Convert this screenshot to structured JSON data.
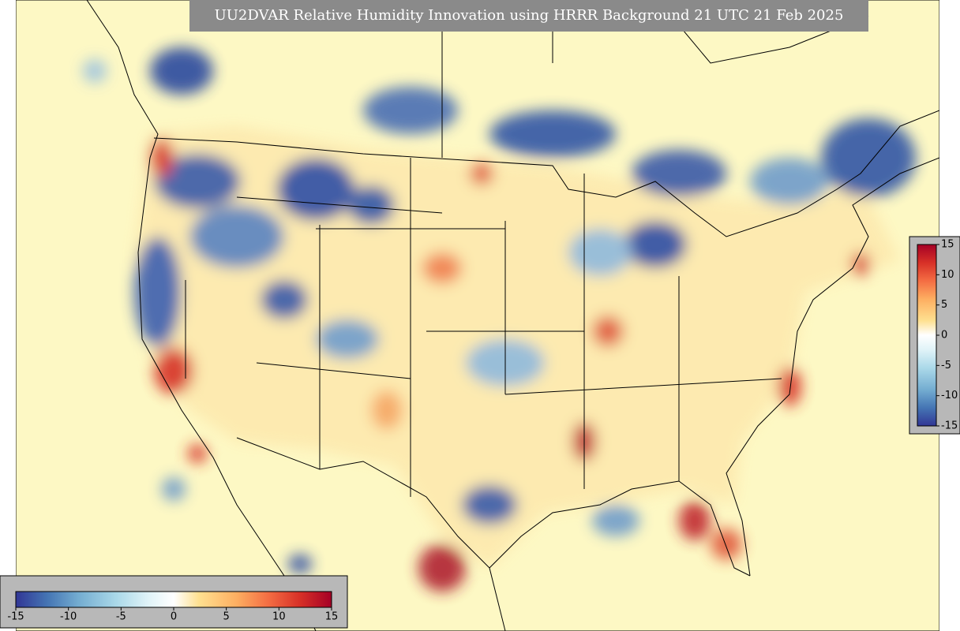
{
  "title": "UU2DVAR Relative Humidity Innovation using HRRR Background 21 UTC 21 Feb 2025",
  "colorbar_horizontal": {
    "lim": [
      -15,
      15
    ],
    "ticks": [
      -15,
      -10,
      -5,
      0,
      5,
      10,
      15
    ]
  },
  "colorbar_vertical": {
    "lim": [
      -15,
      15
    ],
    "ticks": [
      15,
      10,
      5,
      0,
      -5,
      -10,
      -15
    ]
  }
}
